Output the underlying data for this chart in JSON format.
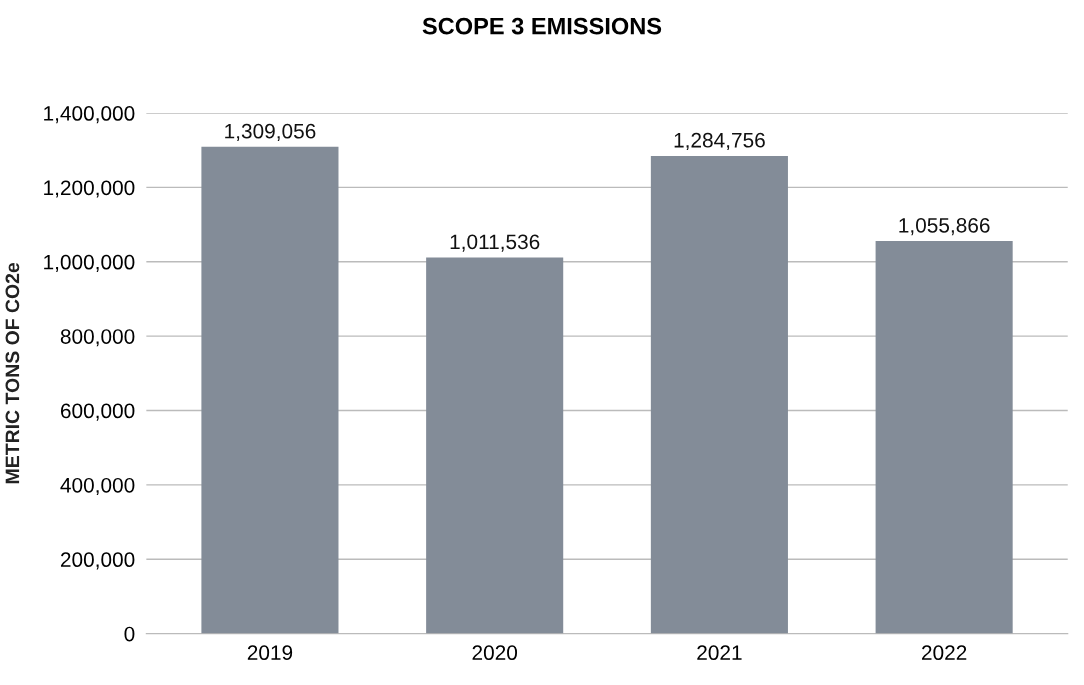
{
  "chart_data": {
    "type": "bar",
    "title": "SCOPE 3 EMISSIONS",
    "ylabel": "METRIC TONS OF CO2e",
    "categories": [
      "2019",
      "2020",
      "2021",
      "2022"
    ],
    "values": [
      1309056,
      1011536,
      1284756,
      1055866
    ],
    "value_labels": [
      "1,309,056",
      "1,011,536",
      "1,284,756",
      "1,055,866"
    ],
    "color": "#838c98",
    "ylim": [
      0,
      1400000
    ],
    "yticks": [
      0,
      {
        "value": 200000,
        "label": "200,000"
      },
      {
        "value": 400000,
        "label": "400,000"
      },
      {
        "value": 600000,
        "label": "600,000"
      },
      {
        "value": 800000,
        "label": "800,000"
      },
      {
        "value": 1000000,
        "label": "1,000,000"
      },
      {
        "value": 1200000,
        "label": "1,200,000"
      },
      {
        "value": 1400000,
        "label": "1,400,000"
      }
    ],
    "grid": "y"
  }
}
